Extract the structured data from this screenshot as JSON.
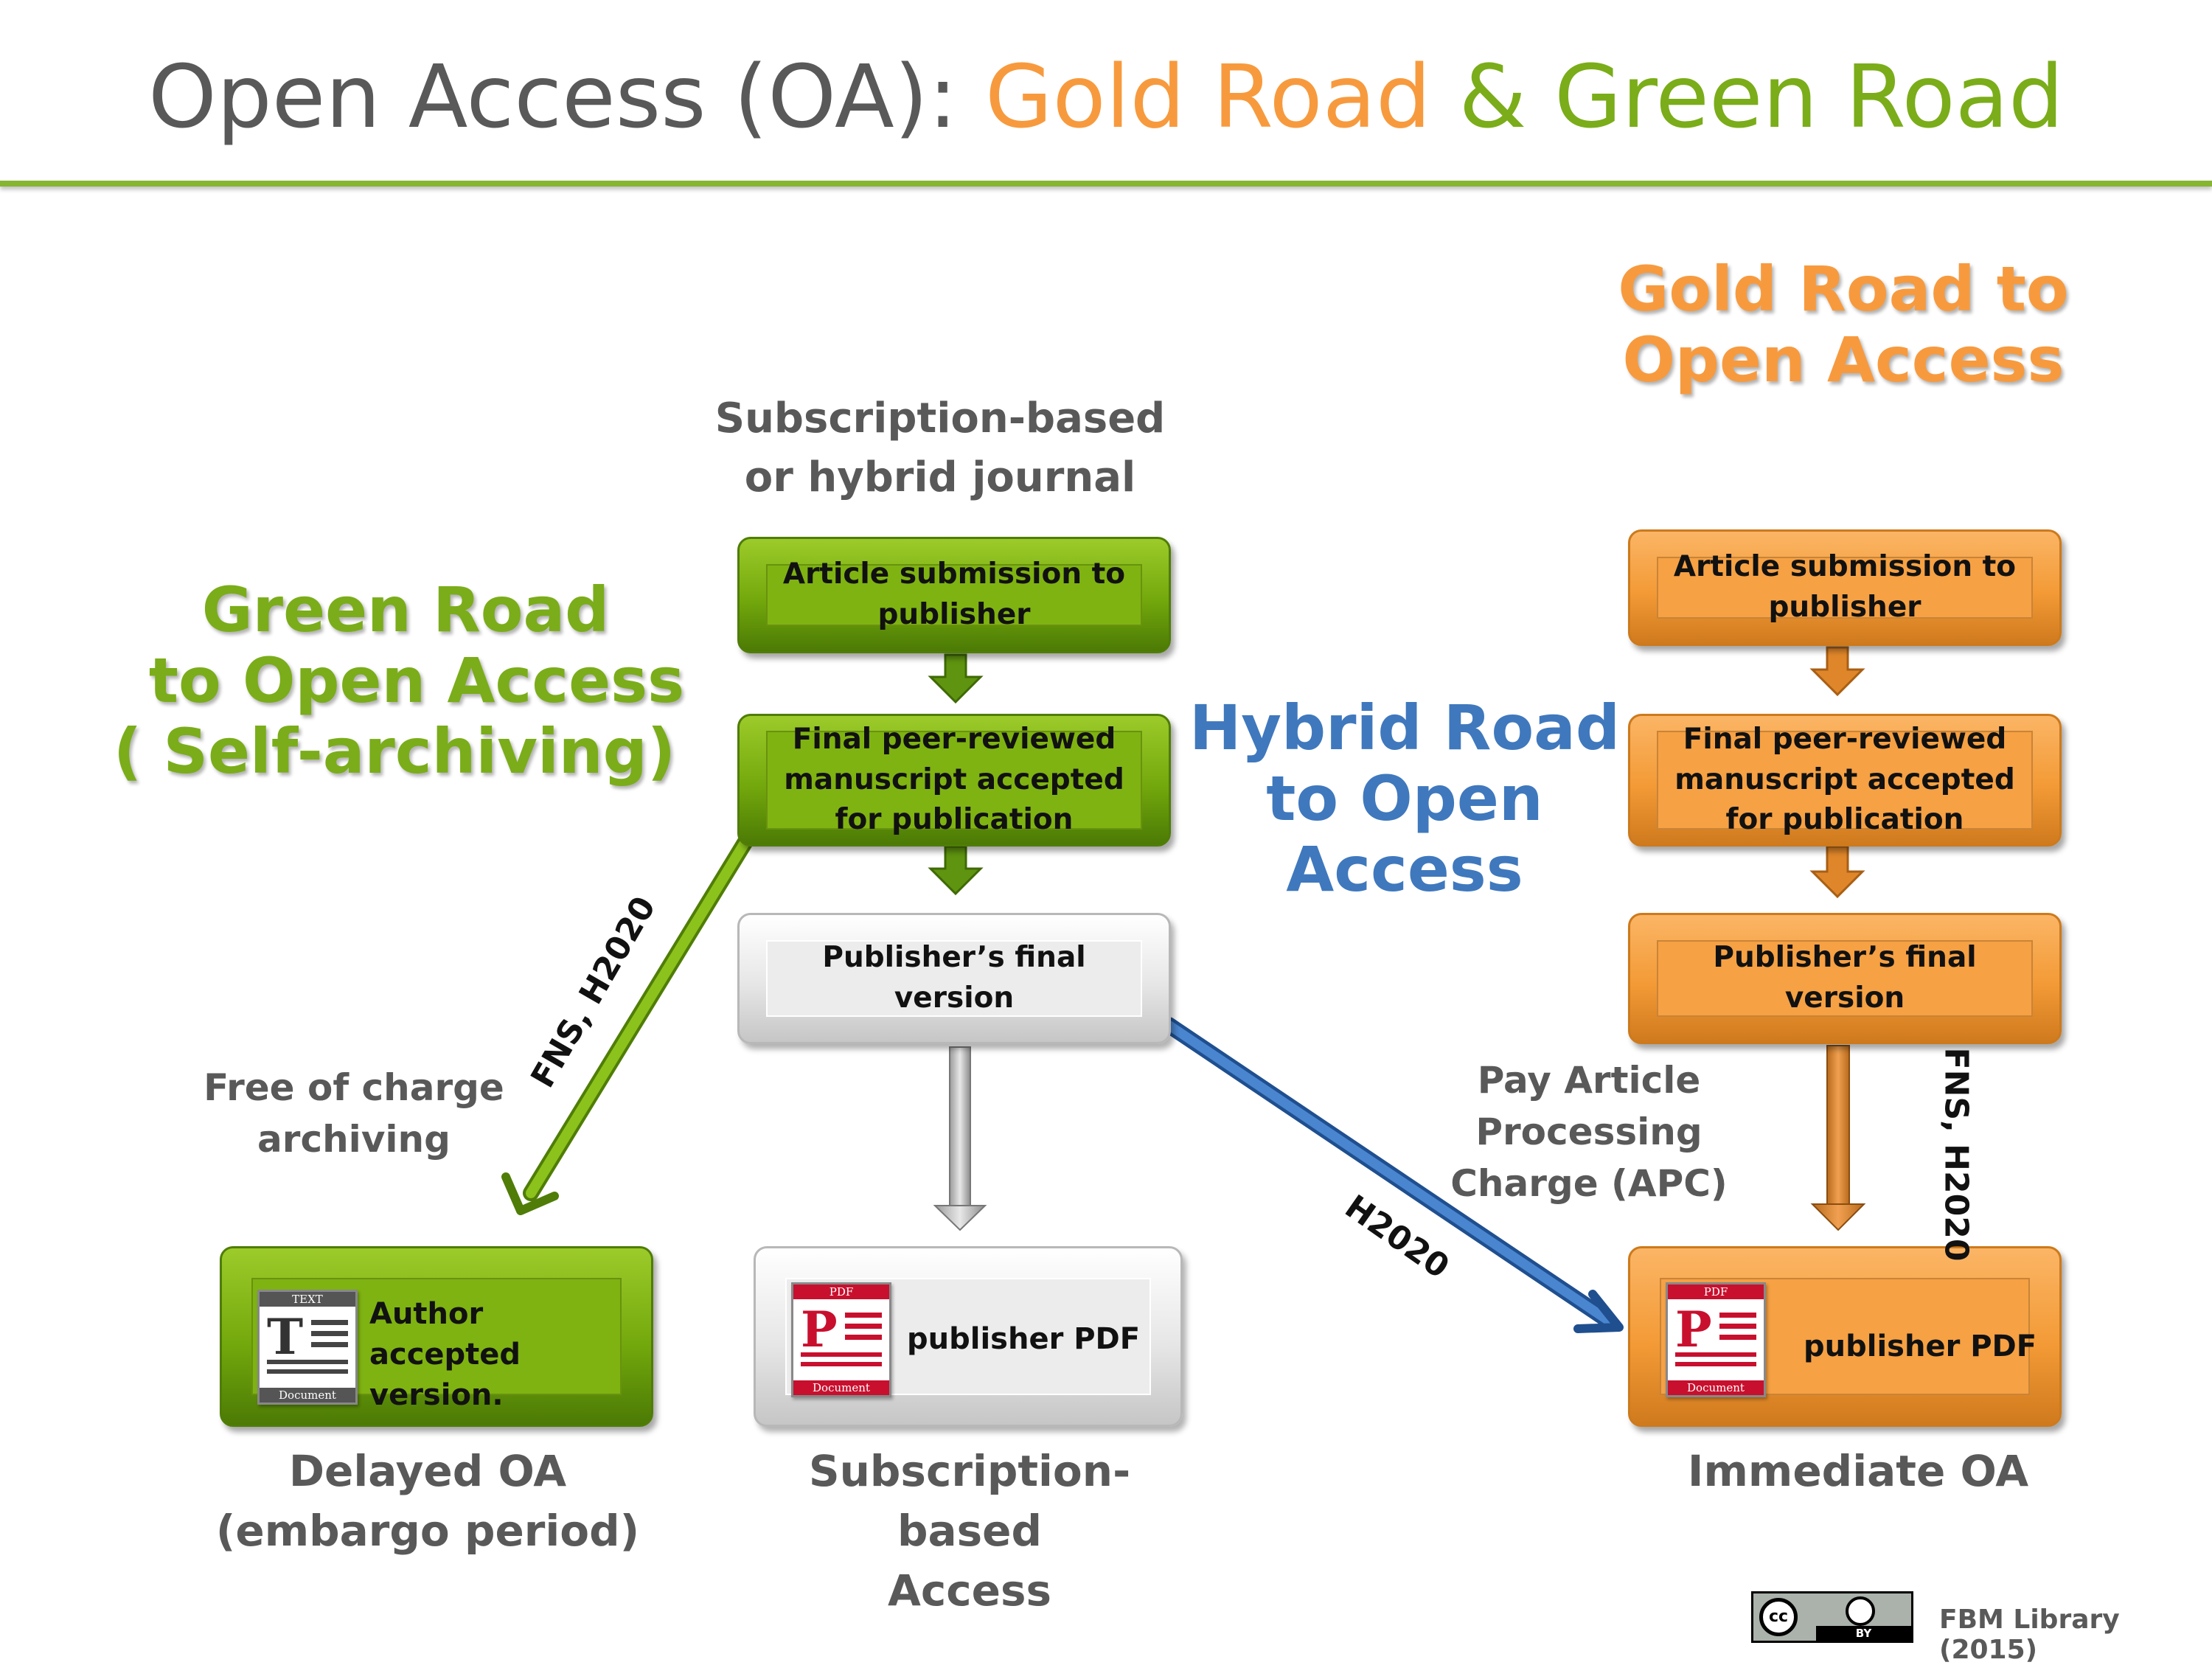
{
  "title": {
    "part1": "Open Access (OA): ",
    "gold": "Gold Road",
    "amp": " & ",
    "green": "Green Road"
  },
  "headings": {
    "green": [
      "Green Road",
      "to Open Access",
      "( Self-archiving)"
    ],
    "gold": [
      "Gold Road to",
      "Open Access"
    ],
    "hybrid": [
      "Hybrid Road",
      "to Open",
      "Access"
    ]
  },
  "journal_label": [
    "Subscription-based",
    "or hybrid journal"
  ],
  "middle_boxes": {
    "submission": "Article submission to publisher",
    "accepted": "Final peer-reviewed manuscript accepted for publication",
    "final": "Publisher’s final version"
  },
  "gold_boxes": {
    "submission": "Article submission to publisher",
    "accepted": "Final peer-reviewed manuscript accepted for publication",
    "final": "Publisher’s final version"
  },
  "outputs": {
    "green": {
      "text": "Author accepted version.",
      "icon_label": "TEXT",
      "icon_caption": "Document",
      "icon_letter": "T"
    },
    "middle": {
      "text": "publisher PDF",
      "icon_label": "PDF",
      "icon_caption": "Document",
      "icon_letter": "P"
    },
    "gold": {
      "text": "publisher PDF",
      "icon_label": "PDF",
      "icon_caption": "Document",
      "icon_letter": "P"
    }
  },
  "bottom_labels": {
    "green": [
      "Delayed  OA",
      "(embargo period)"
    ],
    "middle": [
      "Subscription-based",
      "Access"
    ],
    "gold": [
      "Immediate OA"
    ]
  },
  "side_labels": {
    "free": [
      "Free of charge",
      "archiving"
    ],
    "apc": [
      "Pay Article Processing",
      "Charge (APC)"
    ]
  },
  "arrow_labels": {
    "green": "FNS, H2020",
    "blue": "H2020",
    "gold": "FNS, H2020"
  },
  "colors": {
    "green": "#7aad19",
    "gold": "#f79a3e",
    "blue": "#3f78bd",
    "gray": "#595959"
  },
  "license": {
    "cc": "cc",
    "by": "BY"
  },
  "credit": "FBM Library (2015)"
}
